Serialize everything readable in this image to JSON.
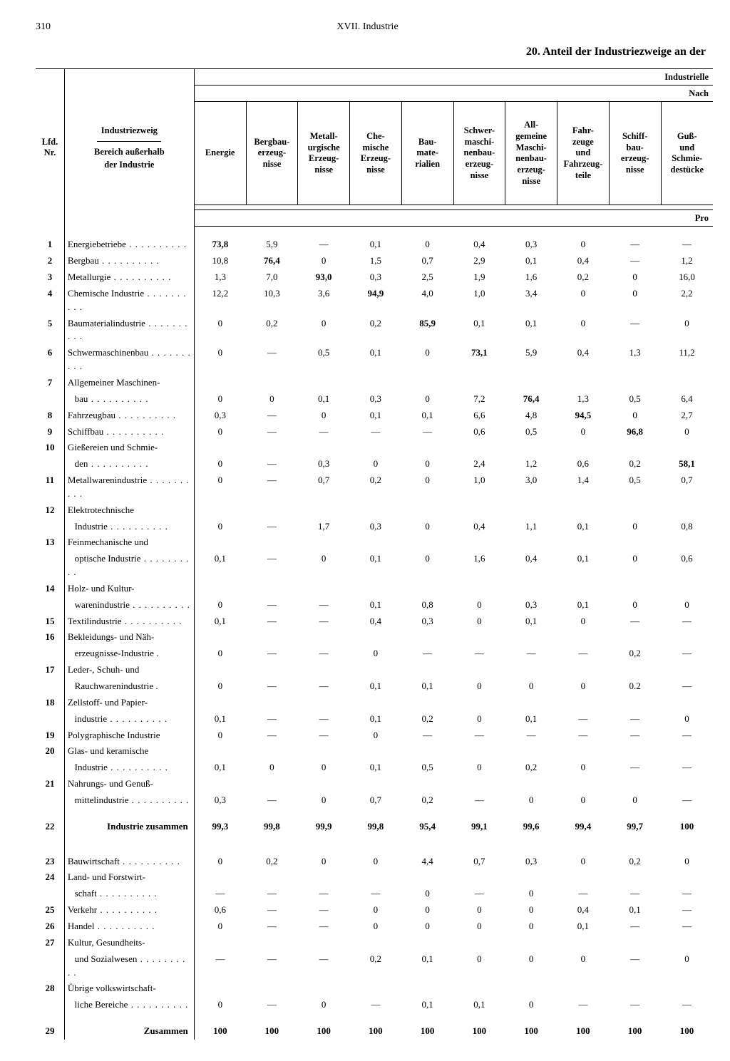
{
  "page_number": "310",
  "running_head": "XVII. Industrie",
  "title": "20. Anteil der Industriezweige an der",
  "corner_label_1": "Industrielle",
  "corner_label_2": "Nach",
  "unit_label": "Pro",
  "header": {
    "nr": "Lfd.\nNr.",
    "rowhead_top": "Industriezweig",
    "rowhead_bot": "Bereich außerhalb\nder Industrie",
    "cols": [
      "Energie",
      "Bergbau-\nerzeug-\nnisse",
      "Metall-\nurgische\nErzeug-\nnisse",
      "Che-\nmische\nErzeug-\nnisse",
      "Bau-\nmate-\nrialien",
      "Schwer-\nmaschi-\nnenbau-\nerzeug-\nnisse",
      "All-\ngemeine\nMaschi-\nnenbau-\nerzeug-\nnisse",
      "Fahr-\nzeuge\nund\nFahrzeug-\nteile",
      "Schiff-\nbau-\nerzeug-\nnisse",
      "Guß-\nund\nSchmie-\ndestücke"
    ]
  },
  "rows": [
    {
      "nr": "1",
      "label": "Energiebetriebe",
      "dots": true,
      "d": [
        "73,8",
        "5,9",
        "—",
        "0,1",
        "0",
        "0,4",
        "0,3",
        "0",
        "—",
        "—"
      ],
      "diag": 0
    },
    {
      "nr": "2",
      "label": "Bergbau",
      "dots": true,
      "d": [
        "10,8",
        "76,4",
        "0",
        "1,5",
        "0,7",
        "2,9",
        "0,1",
        "0,4",
        "—",
        "1,2"
      ],
      "diag": 1
    },
    {
      "nr": "3",
      "label": "Metallurgie",
      "dots": true,
      "d": [
        "1,3",
        "7,0",
        "93,0",
        "0,3",
        "2,5",
        "1,9",
        "1,6",
        "0,2",
        "0",
        "16,0"
      ],
      "diag": 2
    },
    {
      "nr": "4",
      "label": "Chemische Industrie",
      "dots": true,
      "d": [
        "12,2",
        "10,3",
        "3,6",
        "94,9",
        "4,0",
        "1,0",
        "3,4",
        "0",
        "0",
        "2,2"
      ],
      "diag": 3
    },
    {
      "nr": "5",
      "label": "Baumaterialindustrie",
      "dots": true,
      "d": [
        "0",
        "0,2",
        "0",
        "0,2",
        "85,9",
        "0,1",
        "0,1",
        "0",
        "—",
        "0"
      ],
      "diag": 4
    },
    {
      "nr": "6",
      "label": "Schwermaschinenbau",
      "dots": true,
      "d": [
        "0",
        "—",
        "0,5",
        "0,1",
        "0",
        "73,1",
        "5,9",
        "0,4",
        "1,3",
        "11,2"
      ],
      "diag": 5
    },
    {
      "nr": "7",
      "label": "Allgemeiner Maschinen-",
      "d": [
        "",
        "",
        "",
        "",
        "",
        "",
        "",
        "",
        "",
        ""
      ]
    },
    {
      "nr": "",
      "label": "   bau",
      "dots": true,
      "d": [
        "0",
        "0",
        "0,1",
        "0,3",
        "0",
        "7,2",
        "76,4",
        "1,3",
        "0,5",
        "6,4"
      ],
      "diag": 6
    },
    {
      "nr": "8",
      "label": "Fahrzeugbau",
      "dots": true,
      "d": [
        "0,3",
        "—",
        "0",
        "0,1",
        "0,1",
        "6,6",
        "4,8",
        "94,5",
        "0",
        "2,7"
      ],
      "diag": 7
    },
    {
      "nr": "9",
      "label": "Schiffbau",
      "dots": true,
      "d": [
        "0",
        "—",
        "—",
        "—",
        "—",
        "0,6",
        "0,5",
        "0",
        "96,8",
        "0"
      ],
      "diag": 8
    },
    {
      "nr": "10",
      "label": "Gießereien und Schmie-",
      "d": [
        "",
        "",
        "",
        "",
        "",
        "",
        "",
        "",
        "",
        ""
      ]
    },
    {
      "nr": "",
      "label": "   den",
      "dots": true,
      "d": [
        "0",
        "—",
        "0,3",
        "0",
        "0",
        "2,4",
        "1,2",
        "0,6",
        "0,2",
        "58,1"
      ],
      "diag": 9
    },
    {
      "nr": "11",
      "label": "Metallwarenindustrie",
      "dots": true,
      "d": [
        "0",
        "—",
        "0,7",
        "0,2",
        "0",
        "1,0",
        "3,0",
        "1,4",
        "0,5",
        "0,7"
      ]
    },
    {
      "nr": "12",
      "label": "Elektrotechnische",
      "d": [
        "",
        "",
        "",
        "",
        "",
        "",
        "",
        "",
        "",
        ""
      ]
    },
    {
      "nr": "",
      "label": "   Industrie",
      "dots": true,
      "d": [
        "0",
        "—",
        "1,7",
        "0,3",
        "0",
        "0,4",
        "1,1",
        "0,1",
        "0",
        "0,8"
      ]
    },
    {
      "nr": "13",
      "label": "Feinmechanische und",
      "d": [
        "",
        "",
        "",
        "",
        "",
        "",
        "",
        "",
        "",
        ""
      ]
    },
    {
      "nr": "",
      "label": "   optische Industrie",
      "dots": true,
      "d": [
        "0,1",
        "—",
        "0",
        "0,1",
        "0",
        "1,6",
        "0,4",
        "0,1",
        "0",
        "0,6"
      ]
    },
    {
      "nr": "14",
      "label": "Holz- und Kultur-",
      "d": [
        "",
        "",
        "",
        "",
        "",
        "",
        "",
        "",
        "",
        ""
      ]
    },
    {
      "nr": "",
      "label": "   warenindustrie",
      "dots": true,
      "d": [
        "0",
        "—",
        "—",
        "0,1",
        "0,8",
        "0",
        "0,3",
        "0,1",
        "0",
        "0"
      ]
    },
    {
      "nr": "15",
      "label": "Textilindustrie",
      "dots": true,
      "d": [
        "0,1",
        "—",
        "—",
        "0,4",
        "0,3",
        "0",
        "0,1",
        "0",
        "—",
        "—"
      ]
    },
    {
      "nr": "16",
      "label": "Bekleidungs- und Näh-",
      "d": [
        "",
        "",
        "",
        "",
        "",
        "",
        "",
        "",
        "",
        ""
      ]
    },
    {
      "nr": "",
      "label": "   erzeugnisse-Industrie .",
      "d": [
        "0",
        "—",
        "—",
        "0",
        "—",
        "—",
        "—",
        "—",
        "0,2",
        "—"
      ]
    },
    {
      "nr": "17",
      "label": "Leder-, Schuh- und",
      "d": [
        "",
        "",
        "",
        "",
        "",
        "",
        "",
        "",
        "",
        ""
      ]
    },
    {
      "nr": "",
      "label": "   Rauchwarenindustrie .",
      "d": [
        "0",
        "—",
        "—",
        "0,1",
        "0,1",
        "0",
        "0",
        "0",
        "0.2",
        "—"
      ]
    },
    {
      "nr": "18",
      "label": "Zellstoff- und Papier-",
      "d": [
        "",
        "",
        "",
        "",
        "",
        "",
        "",
        "",
        "",
        ""
      ]
    },
    {
      "nr": "",
      "label": "   industrie",
      "dots": true,
      "d": [
        "0,1",
        "—",
        "—",
        "0,1",
        "0,2",
        "0",
        "0,1",
        "—",
        "—",
        "0"
      ]
    },
    {
      "nr": "19",
      "label": "Polygraphische Industrie",
      "d": [
        "0",
        "—",
        "—",
        "0",
        "—",
        "—",
        "—",
        "—",
        "—",
        "—"
      ]
    },
    {
      "nr": "20",
      "label": "Glas- und keramische",
      "d": [
        "",
        "",
        "",
        "",
        "",
        "",
        "",
        "",
        "",
        ""
      ]
    },
    {
      "nr": "",
      "label": "   Industrie",
      "dots": true,
      "d": [
        "0,1",
        "0",
        "0",
        "0,1",
        "0,5",
        "0",
        "0,2",
        "0",
        "—",
        "—"
      ]
    },
    {
      "nr": "21",
      "label": "Nahrungs- und Genuß-",
      "d": [
        "",
        "",
        "",
        "",
        "",
        "",
        "",
        "",
        "",
        ""
      ]
    },
    {
      "nr": "",
      "label": "   mittelindustrie",
      "dots": true,
      "d": [
        "0,3",
        "—",
        "0",
        "0,7",
        "0,2",
        "—",
        "0",
        "0",
        "0",
        "—"
      ]
    }
  ],
  "sum1": {
    "nr": "22",
    "label": "Industrie zusammen",
    "d": [
      "99,3",
      "99,8",
      "99,9",
      "99,8",
      "95,4",
      "99,1",
      "99,6",
      "99,4",
      "99,7",
      "100"
    ]
  },
  "rows2": [
    {
      "nr": "23",
      "label": "Bauwirtschaft",
      "dots": true,
      "d": [
        "0",
        "0,2",
        "0",
        "0",
        "4,4",
        "0,7",
        "0,3",
        "0",
        "0,2",
        "0"
      ]
    },
    {
      "nr": "24",
      "label": "Land- und Forstwirt-",
      "d": [
        "",
        "",
        "",
        "",
        "",
        "",
        "",
        "",
        "",
        ""
      ]
    },
    {
      "nr": "",
      "label": "   schaft",
      "dots": true,
      "d": [
        "—",
        "—",
        "—",
        "—",
        "0",
        "—",
        "0",
        "—",
        "—",
        "—"
      ]
    },
    {
      "nr": "25",
      "label": "Verkehr",
      "dots": true,
      "d": [
        "0,6",
        "—",
        "—",
        "0",
        "0",
        "0",
        "0",
        "0,4",
        "0,1",
        "—"
      ]
    },
    {
      "nr": "26",
      "label": "Handel",
      "dots": true,
      "d": [
        "0",
        "—",
        "—",
        "0",
        "0",
        "0",
        "0",
        "0,1",
        "—",
        "—"
      ]
    },
    {
      "nr": "27",
      "label": "Kultur, Gesundheits-",
      "d": [
        "",
        "",
        "",
        "",
        "",
        "",
        "",
        "",
        "",
        ""
      ]
    },
    {
      "nr": "",
      "label": "   und Sozialwesen",
      "dots": true,
      "d": [
        "—",
        "—",
        "—",
        "0,2",
        "0,1",
        "0",
        "0",
        "0",
        "—",
        "0"
      ]
    },
    {
      "nr": "28",
      "label": "Übrige volkswirtschaft-",
      "d": [
        "",
        "",
        "",
        "",
        "",
        "",
        "",
        "",
        "",
        ""
      ]
    },
    {
      "nr": "",
      "label": "   liche Bereiche",
      "dots": true,
      "d": [
        "0",
        "—",
        "0",
        "—",
        "0,1",
        "0,1",
        "0",
        "—",
        "—",
        "—"
      ]
    }
  ],
  "sum2": {
    "nr": "29",
    "label": "Zusammen",
    "d": [
      "100",
      "100",
      "100",
      "100",
      "100",
      "100",
      "100",
      "100",
      "100",
      "100"
    ]
  }
}
